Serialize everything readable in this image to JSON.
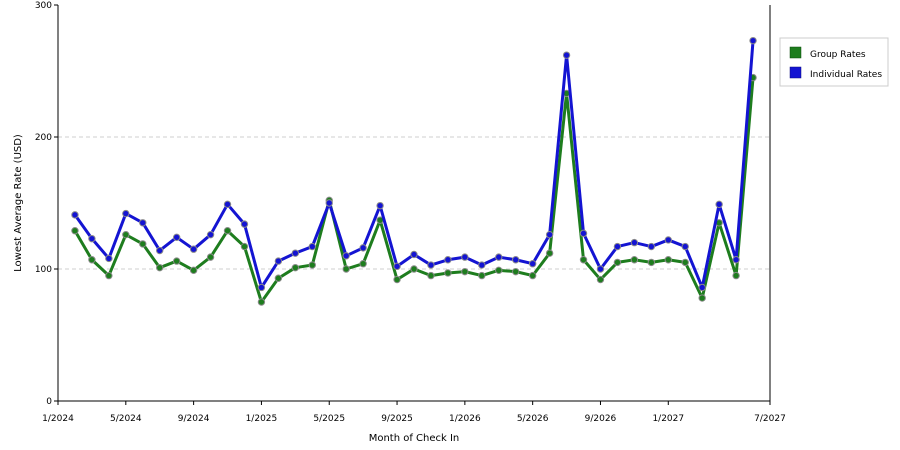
{
  "chart_data": {
    "type": "line",
    "title": "",
    "xlabel": "Month of Check In",
    "ylabel": "Lowest Average Rate (USD)",
    "ylim": [
      0,
      300
    ],
    "y_ticks": [
      "0",
      "100",
      "200",
      "300"
    ],
    "x_ticks": [
      "1/2024",
      "5/2024",
      "9/2024",
      "1/2025",
      "5/2025",
      "9/2025",
      "1/2026",
      "5/2026",
      "9/2026",
      "1/2027",
      "7/2027"
    ],
    "grid": "horizontal dashed",
    "legend_position": "right",
    "x": [
      "1/2024",
      "2/2024",
      "3/2024",
      "4/2024",
      "5/2024",
      "6/2024",
      "7/2024",
      "8/2024",
      "9/2024",
      "10/2024",
      "11/2024",
      "12/2024",
      "1/2025",
      "2/2025",
      "3/2025",
      "4/2025",
      "5/2025",
      "6/2025",
      "7/2025",
      "8/2025",
      "9/2025",
      "10/2025",
      "11/2025",
      "12/2025",
      "1/2026",
      "2/2026",
      "3/2026",
      "4/2026",
      "5/2026",
      "6/2026",
      "7/2026",
      "8/2026",
      "9/2026",
      "10/2026",
      "11/2026",
      "12/2026",
      "1/2027",
      "2/2027",
      "3/2027",
      "4/2027",
      "5/2027"
    ],
    "series": [
      {
        "name": "Group Rates",
        "color": "#1e7d1e",
        "values": [
          129,
          107,
          95,
          126,
          119,
          101,
          106,
          99,
          109,
          129,
          117,
          75,
          93,
          101,
          103,
          152,
          100,
          104,
          137,
          92,
          100,
          95,
          97,
          98,
          95,
          99,
          98,
          95,
          112,
          233,
          107,
          92,
          105,
          107,
          105,
          107,
          105,
          78,
          135,
          95,
          245
        ]
      },
      {
        "name": "Individual Rates",
        "color": "#1414d2",
        "values": [
          141,
          123,
          108,
          142,
          135,
          114,
          124,
          115,
          126,
          149,
          134,
          86,
          106,
          112,
          117,
          150,
          110,
          116,
          148,
          102,
          111,
          103,
          107,
          109,
          103,
          109,
          107,
          104,
          126,
          262,
          127,
          100,
          117,
          120,
          117,
          122,
          117,
          86,
          149,
          107,
          273
        ]
      }
    ],
    "legend": [
      {
        "label": "Group Rates",
        "color": "#1e7d1e"
      },
      {
        "label": "Individual Rates",
        "color": "#1414d2"
      }
    ]
  }
}
